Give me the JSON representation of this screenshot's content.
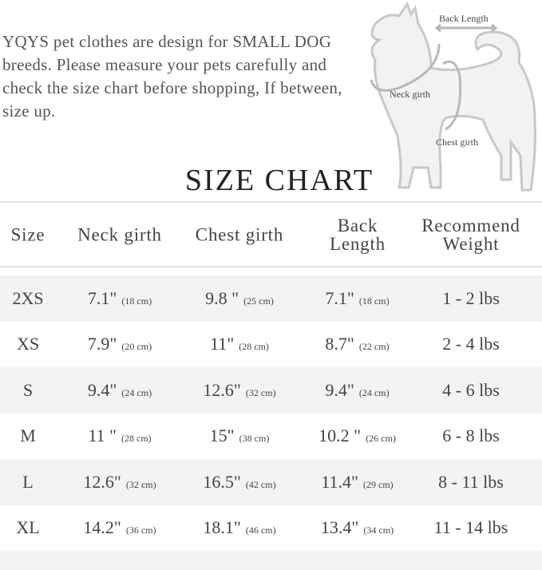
{
  "intro": "YQYS pet clothes are design for SMALL DOG breeds. Please measure your pets carefully and check the size chart before shopping, If between, size up.",
  "diagram": {
    "back_length": "Back Length",
    "neck_girth": "Neck girth",
    "chest_girth": "Chest girth"
  },
  "title": "SIZE CHART",
  "headers": [
    "Size",
    "Neck girth",
    "Chest girth",
    "Back Length",
    "Recommend Weight"
  ],
  "rows": [
    {
      "size": "2XS",
      "neck": "7.1\"",
      "neck_cm": "(18 cm)",
      "chest": "9.8 \"",
      "chest_cm": "(25 cm)",
      "back": "7.1\"",
      "back_cm": "(18 cm)",
      "weight": "1 - 2 lbs"
    },
    {
      "size": "XS",
      "neck": "7.9\"",
      "neck_cm": "(20 cm)",
      "chest": "11\"",
      "chest_cm": "(28 cm)",
      "back": "8.7\"",
      "back_cm": "(22 cm)",
      "weight": "2 - 4 lbs"
    },
    {
      "size": "S",
      "neck": "9.4\"",
      "neck_cm": "(24 cm)",
      "chest": "12.6\"",
      "chest_cm": "(32 cm)",
      "back": "9.4\"",
      "back_cm": "(24 cm)",
      "weight": "4 - 6 lbs"
    },
    {
      "size": "M",
      "neck": "11 \"",
      "neck_cm": "(28 cm)",
      "chest": "15\"",
      "chest_cm": "(38 cm)",
      "back": "10.2 \"",
      "back_cm": "(26 cm)",
      "weight": "6 - 8 lbs"
    },
    {
      "size": "L",
      "neck": "12.6\"",
      "neck_cm": "(32 cm)",
      "chest": "16.5\"",
      "chest_cm": "(42 cm)",
      "back": "11.4\"",
      "back_cm": "(29 cm)",
      "weight": "8 - 11 lbs"
    },
    {
      "size": "XL",
      "neck": "14.2\"",
      "neck_cm": "(36 cm)",
      "chest": "18.1\"",
      "chest_cm": "(46 cm)",
      "back": "13.4\"",
      "back_cm": "(34 cm)",
      "weight": "11 - 14 lbs"
    }
  ],
  "colors": {
    "stripe": "#f3f3f3",
    "dog_fill": "#f2f2f2",
    "dog_stroke": "#c8c8c8"
  }
}
